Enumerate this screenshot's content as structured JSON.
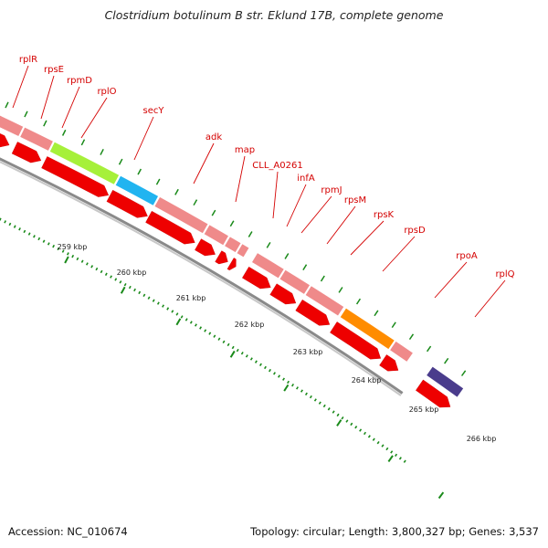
{
  "title": "Clostridium botulinum B str. Eklund 17B, complete genome",
  "footer": {
    "accession": "Accession: NC_010674",
    "topology": "Topology: circular; Length: 3,800,327 bp; Genes: 3,537"
  },
  "colors": {
    "gene_label": "#d40000",
    "feature_pink": "#ef8a8a",
    "cds_red": "#ee0000",
    "secY": "#a6f03a",
    "adk": "#21b4f0",
    "rpoA": "#ff8c00",
    "next_gene": "#4a3c8c",
    "tick": "#1a8a1a",
    "backbone": "#999999"
  },
  "genes": [
    {
      "name": "rplR"
    },
    {
      "name": "rpsE"
    },
    {
      "name": "rpmD"
    },
    {
      "name": "rplO"
    },
    {
      "name": "secY"
    },
    {
      "name": "adk"
    },
    {
      "name": "map"
    },
    {
      "name": "CLL_A0261"
    },
    {
      "name": "infA"
    },
    {
      "name": "rpmJ"
    },
    {
      "name": "rpsM"
    },
    {
      "name": "rpsK"
    },
    {
      "name": "rpsD"
    },
    {
      "name": "rpoA"
    },
    {
      "name": "rplQ"
    }
  ],
  "scale_labels": [
    "259 kbp",
    "260 kbp",
    "261 kbp",
    "262 kbp",
    "263 kbp",
    "264 kbp",
    "265 kbp",
    "266 kbp"
  ]
}
